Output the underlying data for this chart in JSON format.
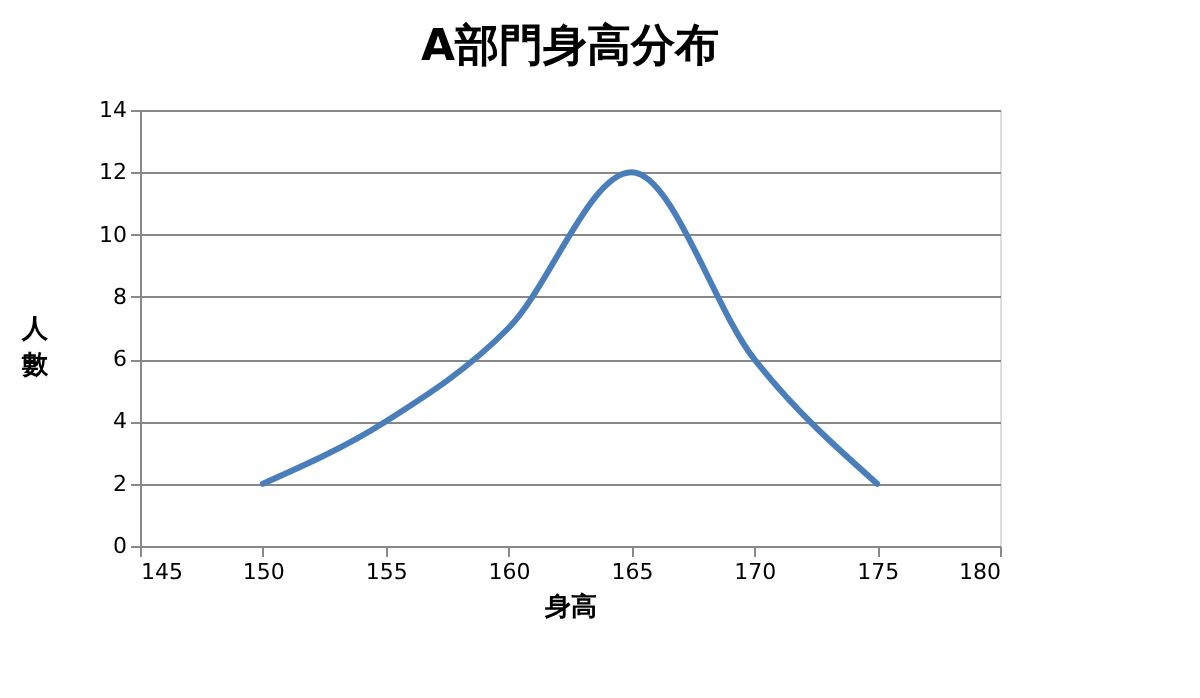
{
  "chart_data": {
    "type": "line",
    "title": "A部門身高分布",
    "xlabel": "身高",
    "ylabel": "人數",
    "x": [
      150,
      155,
      160,
      165,
      170,
      175
    ],
    "series": [
      {
        "color": "#4a7ebb",
        "values": [
          2,
          4,
          7,
          12,
          6,
          2
        ]
      }
    ],
    "xlim": [
      145,
      180
    ],
    "xticks": [
      145,
      150,
      155,
      160,
      165,
      170,
      175,
      180
    ],
    "ylim": [
      0,
      14
    ],
    "yticks": [
      0,
      2,
      4,
      6,
      8,
      10,
      12,
      14
    ],
    "grid": "y",
    "marker": "none",
    "line_style": "solid"
  }
}
